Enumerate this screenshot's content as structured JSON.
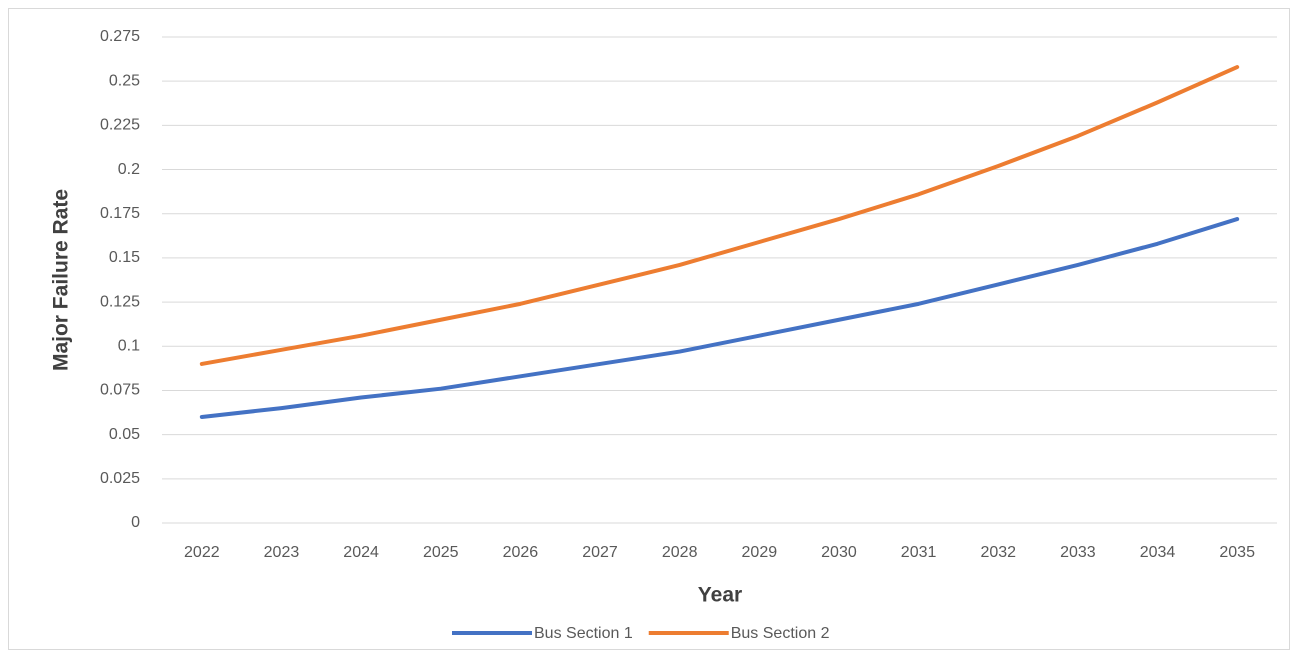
{
  "chart_data": {
    "type": "line",
    "x_label": "Year",
    "y_label": "Major Failure Rate",
    "categories": [
      "2022",
      "2023",
      "2024",
      "2025",
      "2026",
      "2027",
      "2028",
      "2029",
      "2030",
      "2031",
      "2032",
      "2033",
      "2034",
      "2035"
    ],
    "series": [
      {
        "name": "Bus Section 1",
        "color": "#4472c4",
        "values": [
          0.06,
          0.065,
          0.071,
          0.076,
          0.083,
          0.09,
          0.097,
          0.106,
          0.115,
          0.124,
          0.135,
          0.146,
          0.158,
          0.172
        ]
      },
      {
        "name": "Bus Section 2",
        "color": "#ed7d31",
        "values": [
          0.09,
          0.098,
          0.106,
          0.115,
          0.124,
          0.135,
          0.146,
          0.159,
          0.172,
          0.186,
          0.202,
          0.219,
          0.238,
          0.258
        ]
      }
    ],
    "ylim": [
      0,
      0.275
    ],
    "yticks": [
      0,
      0.025,
      0.05,
      0.075,
      0.1,
      0.125,
      0.15,
      0.175,
      0.2,
      0.225,
      0.25,
      0.275
    ],
    "grid": true,
    "legend": "bottom"
  }
}
